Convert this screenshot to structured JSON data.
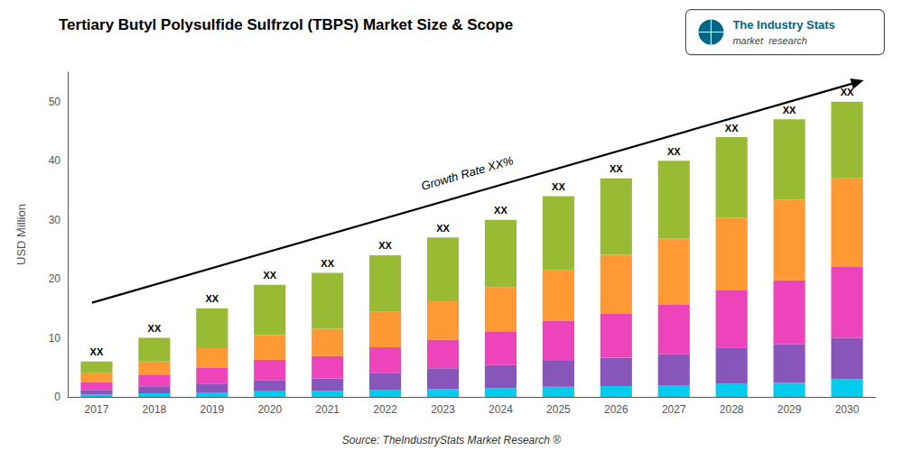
{
  "chart_data": {
    "type": "bar",
    "title": "Tertiary Butyl Polysulfide Sulfrzol (TBPS) Market Size & Scope",
    "ylabel": "USD Million",
    "categories": [
      "2017",
      "2018",
      "2019",
      "2020",
      "2021",
      "2022",
      "2023",
      "2024",
      "2025",
      "2026",
      "2027",
      "2028",
      "2029",
      "2030"
    ],
    "series": [
      {
        "color": "#00ccee",
        "values": [
          0.42,
          0.6,
          0.75,
          0.95,
          1.05,
          1.2,
          1.35,
          1.5,
          1.7,
          1.85,
          2.0,
          2.2,
          2.35,
          3.0
        ]
      },
      {
        "color": "#8855bb",
        "values": [
          0.78,
          1.2,
          1.5,
          1.9,
          2.1,
          2.88,
          3.51,
          3.9,
          4.42,
          4.81,
          5.2,
          6.16,
          6.58,
          7.0
        ]
      },
      {
        "color": "#ee44bb",
        "values": [
          1.32,
          2.0,
          2.7,
          3.42,
          3.78,
          4.32,
          4.86,
          5.7,
          6.8,
          7.4,
          8.4,
          9.68,
          10.81,
          12.0
        ]
      },
      {
        "color": "#ff9933",
        "values": [
          1.5,
          2.2,
          3.3,
          4.18,
          4.62,
          6.0,
          6.48,
          7.5,
          8.5,
          9.99,
          11.2,
          12.32,
          13.63,
          15.0
        ]
      },
      {
        "color": "#99bb33",
        "values": [
          1.98,
          4.0,
          6.75,
          8.55,
          9.45,
          9.6,
          10.8,
          11.4,
          12.58,
          12.95,
          13.2,
          13.64,
          13.63,
          13.0
        ]
      }
    ],
    "stacked": true,
    "ylim": [
      0,
      55
    ],
    "yticks": [
      0,
      10,
      20,
      30,
      40,
      50
    ],
    "grid": false,
    "bar_label": "XX",
    "growth_text": "Growth Rate XX%",
    "source": "Source: TheIndustryStats Market Research ®",
    "logo_title": "The Industry Stats",
    "logo_subtitle": "market  research"
  }
}
